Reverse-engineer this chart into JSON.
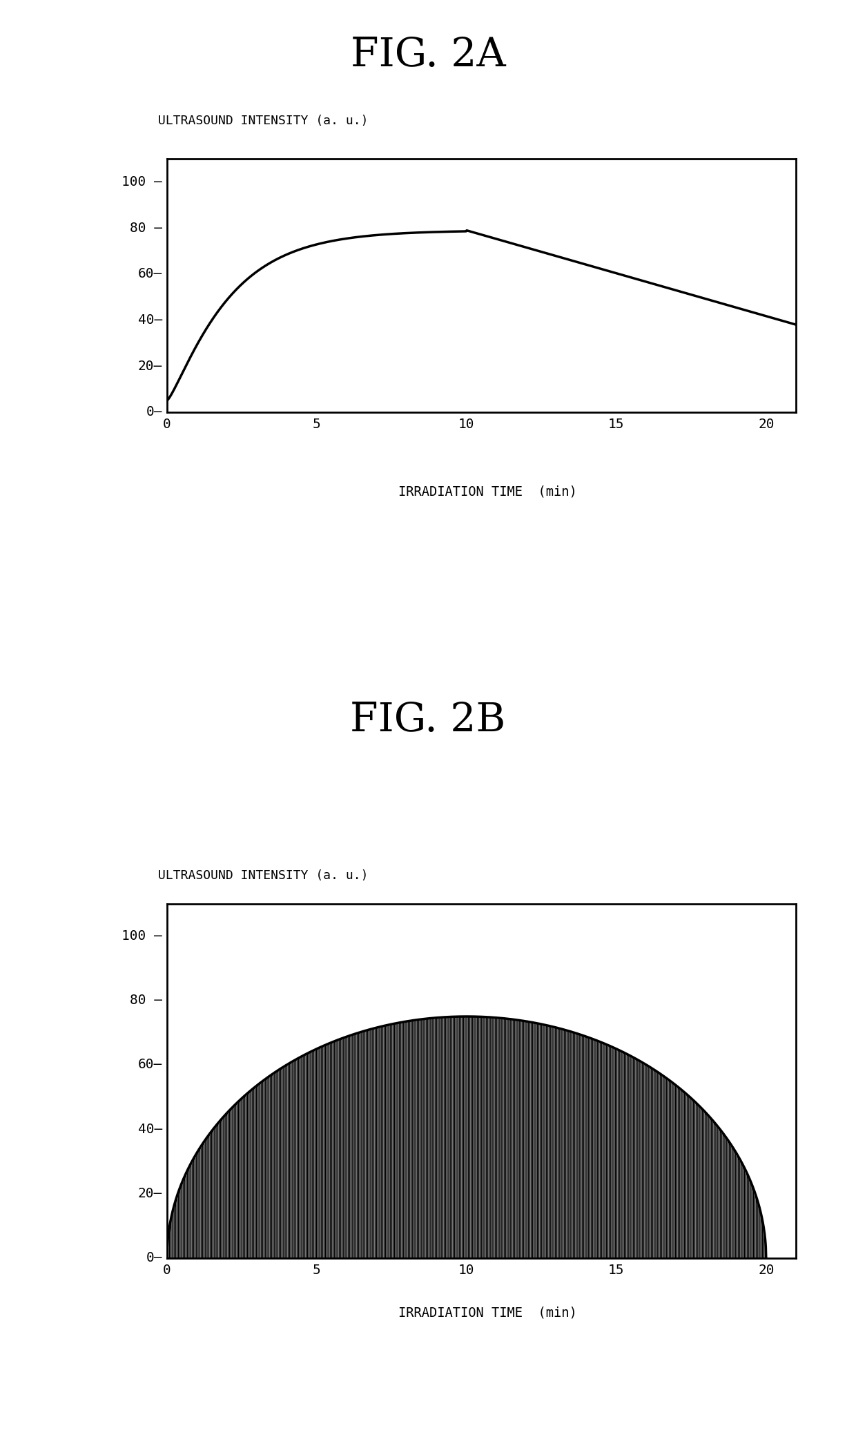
{
  "fig2a_title": "FIG. 2A",
  "fig2b_title": "FIG. 2B",
  "ylabel": "ULTRASOUND INTENSITY (a. u.)",
  "xlabel": "IRRADIATION TIME  (min)",
  "yticks": [
    0,
    20,
    40,
    60,
    80,
    100
  ],
  "xticks": [
    0,
    5,
    10,
    15,
    20
  ],
  "bg_color": "#ffffff",
  "line_color": "#000000"
}
